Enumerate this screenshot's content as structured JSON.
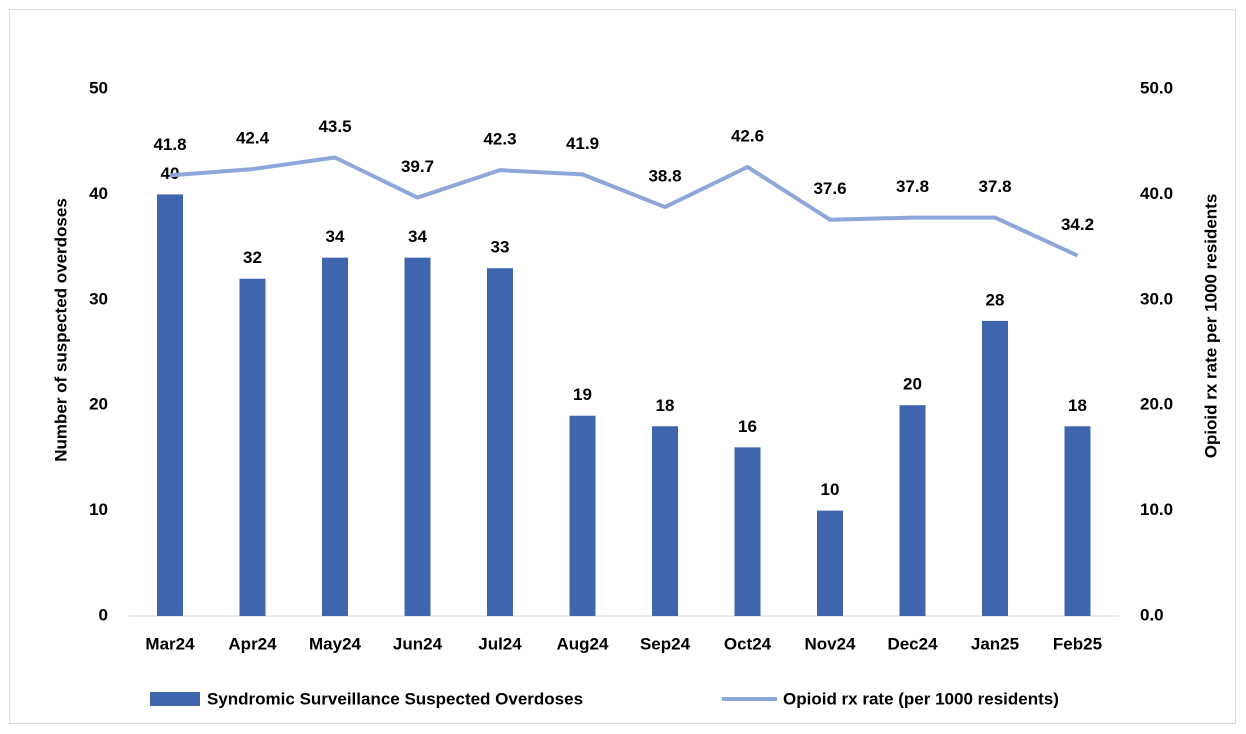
{
  "chart_data": {
    "type": "combo",
    "categories": [
      "Mar24",
      "Apr24",
      "May24",
      "Jun24",
      "Jul24",
      "Aug24",
      "Sep24",
      "Oct24",
      "Nov24",
      "Dec24",
      "Jan25",
      "Feb25"
    ],
    "series": [
      {
        "name": "Syndromic Surveillance Suspected Overdoses",
        "type": "bar",
        "color": "#3f65af",
        "values": [
          40,
          32,
          34,
          34,
          33,
          19,
          18,
          16,
          10,
          20,
          28,
          18
        ]
      },
      {
        "name": "Opioid rx rate (per 1000 residents)",
        "type": "line",
        "axis": "y2",
        "color": "#8ea7d9",
        "values": [
          41.8,
          42.4,
          43.5,
          39.7,
          42.3,
          41.9,
          38.8,
          42.6,
          37.6,
          37.8,
          37.8,
          34.2
        ]
      }
    ],
    "y_label": "Number of suspected overdoses",
    "y2_label": "Opioid rx rate per 1000 residents",
    "ylim": [
      0,
      50
    ],
    "yticks": [
      0,
      10,
      20,
      30,
      40,
      50
    ],
    "y2lim": [
      0,
      50
    ],
    "y2ticks": [
      {
        "value": 0,
        "label": "0.0"
      },
      {
        "value": 10,
        "label": "10.0"
      },
      {
        "value": 20,
        "label": "20.0"
      },
      {
        "value": 30,
        "label": "30.0"
      },
      {
        "value": 40,
        "label": "40.0"
      },
      {
        "value": 50,
        "label": "50.0"
      }
    ],
    "grid": false,
    "legend": "bottom"
  }
}
